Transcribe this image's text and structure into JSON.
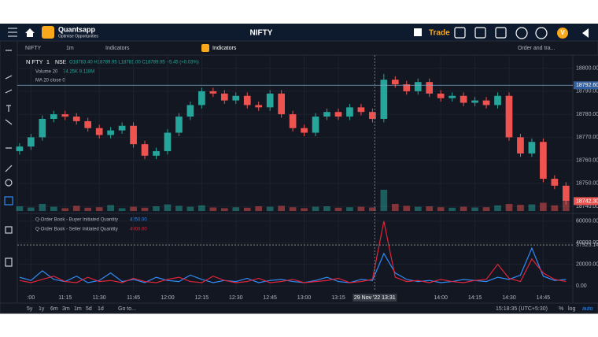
{
  "header": {
    "logo": "Quantsapp",
    "tagline": "Optimise Opportunities",
    "title": "NIFTY",
    "trade": "Trade",
    "user": "V"
  },
  "toolbar": {
    "symbol": "NIFTY",
    "interval": "1m",
    "indicators": "Indicators",
    "indicators2": "Indicators",
    "order": "Order and tra..."
  },
  "chart_data": {
    "type": "candlestick",
    "legend": {
      "symbol": "NIFTY",
      "interval": "1",
      "exchange": "NSE",
      "ohlc": "O18783.40 H18789.95 L18781.00 C18789.95 +5.45 (+0.03%)",
      "volume": "Volume 20",
      "volume_values": "74.25K 9.118M",
      "ma": "MA 20 close 0"
    },
    "x": [
      "10:55",
      "11:00",
      "11:05",
      "11:10",
      "11:15",
      "11:20",
      "11:25",
      "11:30",
      "11:35",
      "11:40",
      "11:45",
      "11:50",
      "11:55",
      "12:00",
      "12:05",
      "12:10",
      "12:15",
      "12:20",
      "12:25",
      "12:30",
      "12:35",
      "12:40",
      "12:45",
      "12:50",
      "12:55",
      "13:00",
      "13:05",
      "13:10",
      "13:15",
      "13:20",
      "13:25",
      "13:30",
      "13:35",
      "13:40",
      "13:45",
      "13:50",
      "13:55",
      "14:00",
      "14:05",
      "14:10",
      "14:15",
      "14:20",
      "14:25",
      "14:30",
      "14:35",
      "14:40",
      "14:45",
      "14:50",
      "14:55"
    ],
    "open": [
      18764,
      18766,
      18770,
      18778,
      18780,
      18779,
      18777,
      18774,
      18771,
      18773,
      18775,
      18767,
      18762,
      18764,
      18772,
      18779,
      18784,
      18790,
      18789,
      18786,
      18788,
      18784,
      18783,
      18789,
      18780,
      18774,
      18772,
      18779,
      18781,
      18779,
      18783,
      18781,
      18778,
      18795,
      18793,
      18790,
      18794,
      18789,
      18787,
      18788,
      18785,
      18786,
      18784,
      18788,
      18770,
      18763,
      18768,
      18752,
      18749
    ],
    "high": [
      18767.5,
      18771.5,
      18779.5,
      18781.5,
      18781.5,
      18780.5,
      18778.5,
      18775.5,
      18774.5,
      18776.5,
      18776.5,
      18768.5,
      18765.5,
      18773.5,
      18780.5,
      18785.5,
      18791.5,
      18791.5,
      18790.5,
      18789.5,
      18789.5,
      18785.5,
      18790.5,
      18790.5,
      18781.5,
      18775.5,
      18780.5,
      18782.5,
      18782.5,
      18784.5,
      18784.5,
      18782.5,
      18797.5,
      18796.5,
      18794.5,
      18795.5,
      18795.5,
      18790.5,
      18789.5,
      18789.5,
      18787.5,
      18787.5,
      18789.5,
      18789.5,
      18771.5,
      18769.5,
      18769.5,
      18753.5,
      18750.5
    ],
    "low": [
      18762.5,
      18764.5,
      18768.5,
      18776.5,
      18777.5,
      18775.5,
      18772.5,
      18769.5,
      18769.5,
      18771.5,
      18765.5,
      18760.5,
      18760.5,
      18762.5,
      18770.5,
      18777.5,
      18782.5,
      18787.5,
      18784.5,
      18784.5,
      18782.5,
      18781.5,
      18781.5,
      18778.5,
      18772.5,
      18770.5,
      18770.5,
      18777.5,
      18777.5,
      18777.5,
      18779.5,
      18776.5,
      18776.5,
      18791.5,
      18788.5,
      18788.5,
      18787.5,
      18785.5,
      18785.5,
      18783.5,
      18783.5,
      18782.5,
      18782.5,
      18768.5,
      18761.5,
      18761.5,
      18750.5,
      18747.5,
      18740.8
    ],
    "close": [
      18766,
      18770,
      18778,
      18780,
      18779,
      18777,
      18774,
      18771,
      18773,
      18775,
      18767,
      18762,
      18764,
      18772,
      18779,
      18784,
      18790,
      18789,
      18786,
      18788,
      18784,
      18783,
      18789,
      18780,
      18774,
      18772,
      18779,
      18781,
      18779,
      18783,
      18781,
      18778,
      18795,
      18793,
      18790,
      18794,
      18789,
      18787,
      18788,
      18785,
      18786,
      18784,
      18788,
      18770,
      18763,
      18768,
      18752,
      18749,
      18742.3
    ],
    "volume": [
      20,
      15,
      30,
      18,
      12,
      22,
      14,
      16,
      25,
      12,
      18,
      14,
      20,
      28,
      22,
      18,
      24,
      15,
      12,
      16,
      14,
      20,
      18,
      22,
      16,
      12,
      18,
      20,
      14,
      16,
      18,
      15,
      90,
      30,
      22,
      18,
      20,
      16,
      14,
      18,
      15,
      16,
      24,
      30,
      26,
      28,
      35,
      24,
      40
    ],
    "volume_lim": [
      0,
      100
    ],
    "colors": {
      "up": "#26a69a",
      "down": "#ef5350"
    },
    "xlim": [
      "10:54",
      "14:58"
    ],
    "ylim": [
      18738,
      18805
    ],
    "yticks": [
      {
        "value": 18800,
        "label": "18800.00"
      },
      {
        "value": 18790,
        "label": "18790.00"
      },
      {
        "value": 18780,
        "label": "18780.00"
      },
      {
        "value": 18770,
        "label": "18770.00"
      },
      {
        "value": 18760,
        "label": "18760.00"
      },
      {
        "value": 18750,
        "label": "18750.00"
      },
      {
        "value": 18740,
        "label": "18740.00"
      }
    ],
    "price_line": {
      "value": 18792.6,
      "label": "18792.60"
    },
    "last_price": {
      "value": 18742.3,
      "label": "18742.30"
    },
    "xticks": [
      {
        "value": "11:00",
        "label": ":00"
      },
      {
        "value": "11:15",
        "label": "11:15"
      },
      {
        "value": "11:30",
        "label": "11:30"
      },
      {
        "value": "11:45",
        "label": "11:45"
      },
      {
        "value": "12:00",
        "label": "12:00"
      },
      {
        "value": "12:15",
        "label": "12:15"
      },
      {
        "value": "12:30",
        "label": "12:30"
      },
      {
        "value": "12:45",
        "label": "12:45"
      },
      {
        "value": "13:00",
        "label": "13:00"
      },
      {
        "value": "13:15",
        "label": "13:15"
      },
      {
        "value": "14:00",
        "label": "14:00"
      },
      {
        "value": "14:15",
        "label": "14:15"
      },
      {
        "value": "14:30",
        "label": "14:30"
      },
      {
        "value": "14:45",
        "label": "14:45"
      }
    ],
    "crosshair": {
      "x": "13:31",
      "label": "29 Nov '22 13:31"
    }
  },
  "lower_chart": {
    "type": "line",
    "series": [
      {
        "name": "Q-Order Book - Buyer Initiated Quantity",
        "value_label": "4250.00",
        "color": "#2f8cf5",
        "values": [
          8000,
          5000,
          14000,
          6000,
          4000,
          9000,
          3000,
          5000,
          12000,
          4000,
          6000,
          3000,
          8000,
          5000,
          4000,
          10000,
          6000,
          3000,
          5000,
          4000,
          7000,
          3000,
          5000,
          6000,
          4000,
          3000,
          5000,
          8000,
          4000,
          3000,
          6000,
          5000,
          30000,
          12000,
          6000,
          4000,
          5000,
          3000,
          4000,
          6000,
          5000,
          4000,
          8000,
          6000,
          10000,
          35000,
          9000,
          5000,
          6000
        ]
      },
      {
        "name": "Q-Order Book - Seller Initiated Quantity",
        "value_label": "4900.00",
        "color": "#e0243a",
        "values": [
          5000,
          3000,
          6000,
          9000,
          4000,
          3000,
          8000,
          4000,
          5000,
          3000,
          7000,
          4000,
          3000,
          6000,
          8000,
          4000,
          3000,
          9000,
          5000,
          3000,
          4000,
          7000,
          3000,
          4000,
          6000,
          3000,
          4000,
          5000,
          7000,
          3000,
          4000,
          6000,
          60000,
          8000,
          4000,
          5000,
          3000,
          6000,
          4000,
          3000,
          5000,
          6000,
          20000,
          7000,
          4000,
          25000,
          12000,
          6000,
          4000
        ]
      }
    ],
    "ylim": [
      -3600,
      66500
    ],
    "yticks": [
      {
        "value": 60000,
        "label": "60000.00"
      },
      {
        "value": 40000,
        "label": "40000.00"
      },
      {
        "value": 20000,
        "label": "20000.00"
      },
      {
        "value": 0,
        "label": "0.00"
      }
    ],
    "marker": {
      "value": 37925.14,
      "label": "37925.14"
    }
  },
  "footer": {
    "ranges": [
      "5y",
      "1y",
      "6m",
      "3m",
      "1m",
      "5d",
      "1d"
    ],
    "goto": "Go to...",
    "clock": "15:18:35 (UTC+5:30)",
    "percent": "%",
    "log": "log",
    "auto": "auto"
  }
}
